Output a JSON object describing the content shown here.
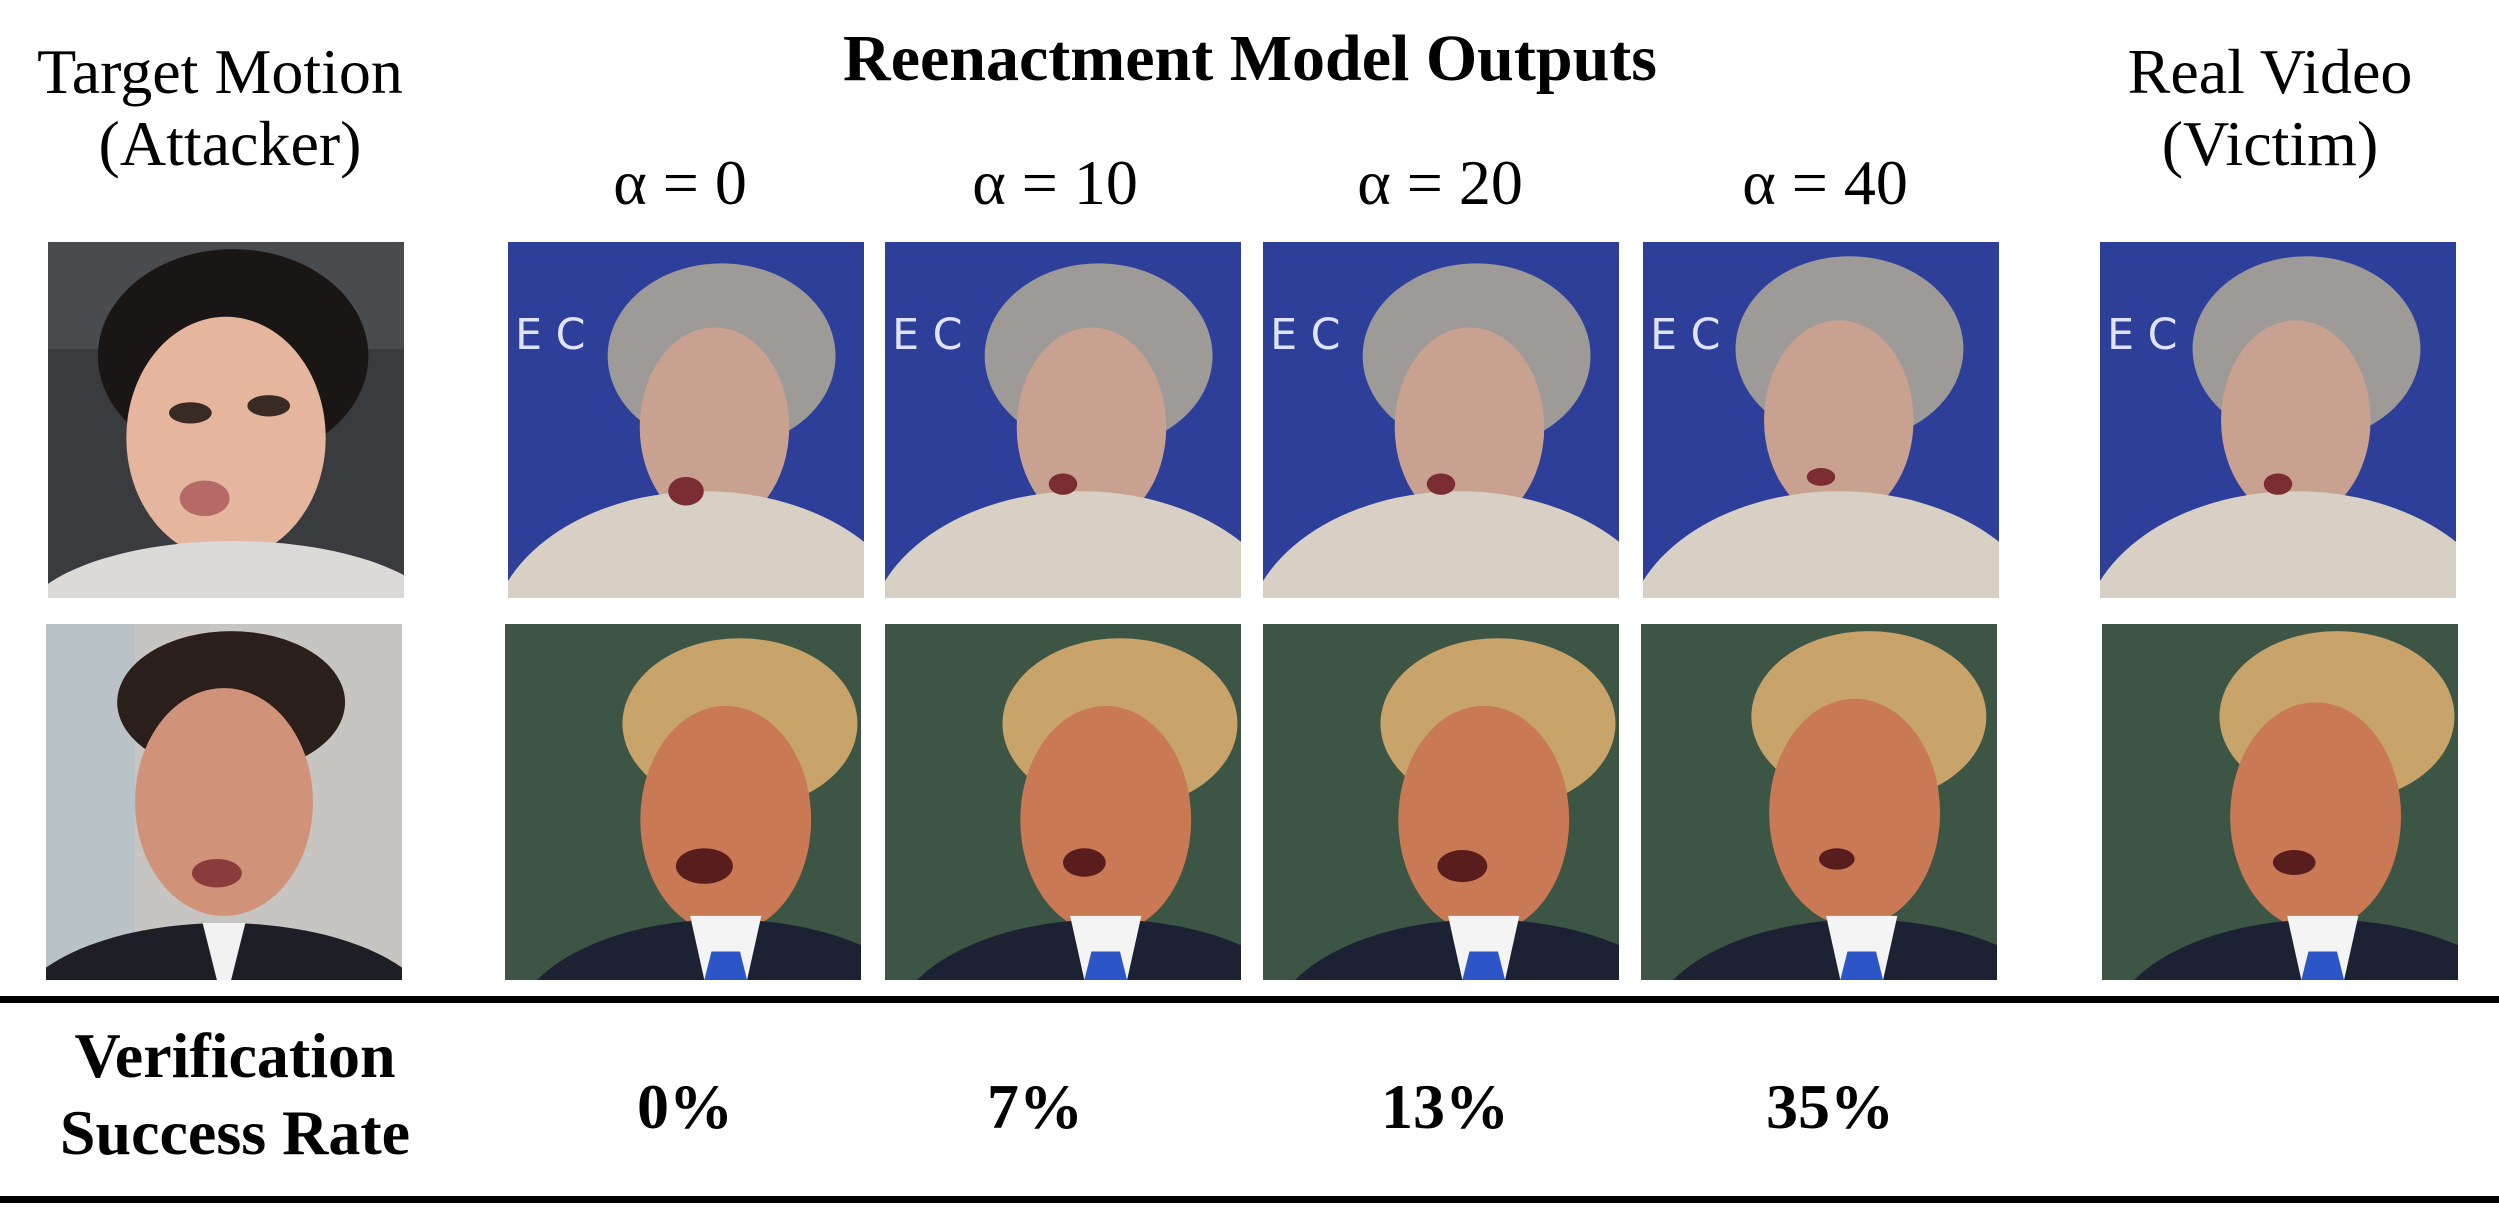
{
  "headers": {
    "target_motion": [
      "Target Motion",
      "(Attacker)"
    ],
    "main": "Reenactment Model Outputs",
    "real_video": [
      "Real Video",
      "(Victim)"
    ]
  },
  "alphas": [
    "α = 0",
    "α = 10",
    "α = 20",
    "α = 40"
  ],
  "row_label": [
    "Verification",
    "Success Rate"
  ],
  "success_rates": [
    "0%",
    "7%",
    "13%",
    "35%"
  ],
  "colors": {
    "may_background": "#2e3f9a",
    "may_hair": "#9d9a98",
    "may_skin": "#c9a191",
    "may_jacket": "#d8d0c4",
    "trump_background": "#3d5544",
    "trump_hair": "#c9a46a",
    "trump_skin": "#c97a55",
    "trump_suit": "#1c2233",
    "trump_tie": "#2c55c8",
    "attacker1_skin": "#e6b59e",
    "attacker1_bg": "#3a3b3e",
    "attacker2_skin": "#d0937a",
    "attacker2_bg": "#c7c5c1"
  }
}
